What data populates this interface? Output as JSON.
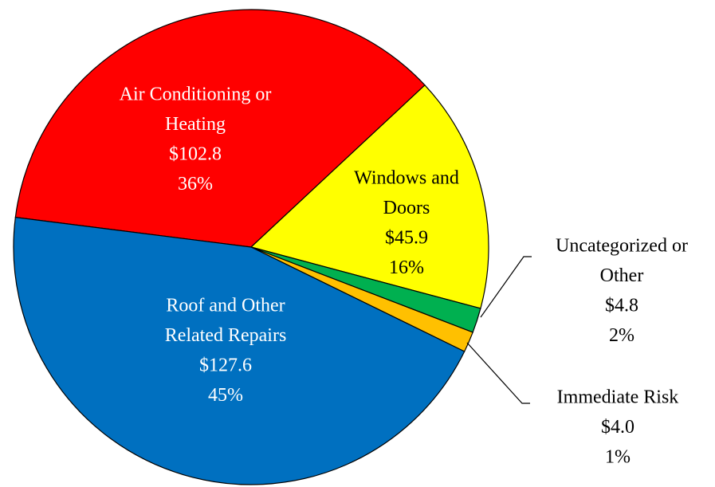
{
  "chart_data": {
    "type": "pie",
    "categories": [
      [
        "Air Conditioning or",
        "Heating"
      ],
      [
        "Windows and",
        "Doors"
      ],
      [
        "Uncategorized or",
        "Other"
      ],
      [
        "Immediate Risk"
      ],
      [
        "Roof and Other",
        "Related Repairs"
      ]
    ],
    "values": [
      102.8,
      45.9,
      4.8,
      4.0,
      127.6
    ],
    "value_labels": [
      "$102.8",
      "$45.9",
      "$4.8",
      "$4.0",
      "$127.6"
    ],
    "percentages": [
      36,
      16,
      2,
      1,
      45
    ],
    "percentage_labels": [
      "36%",
      "16%",
      "2%",
      "1%",
      "45%"
    ],
    "colors": [
      "#ff0000",
      "#ffff00",
      "#00b050",
      "#ffc000",
      "#0070c0"
    ]
  }
}
